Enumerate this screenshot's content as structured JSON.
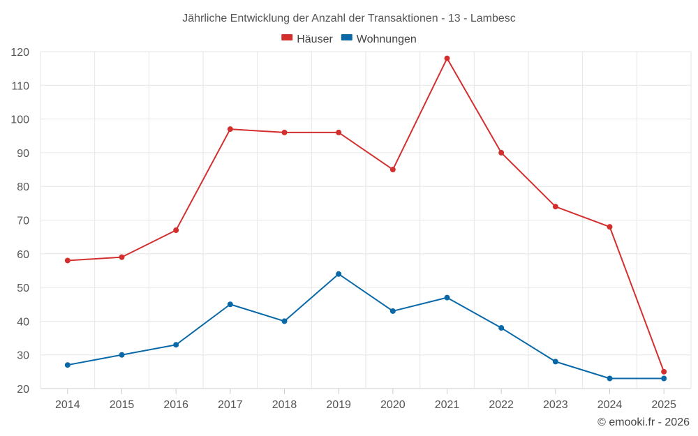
{
  "chart_data": {
    "type": "line",
    "title": "Jährliche Entwicklung der Anzahl der Transaktionen - 13 - Lambesc",
    "categories": [
      "2014",
      "2015",
      "2016",
      "2017",
      "2018",
      "2019",
      "2020",
      "2021",
      "2022",
      "2023",
      "2024",
      "2025"
    ],
    "series": [
      {
        "name": "Häuser",
        "color": "#d32f2f",
        "values": [
          58,
          59,
          67,
          97,
          96,
          96,
          85,
          118,
          90,
          74,
          68,
          25
        ]
      },
      {
        "name": "Wohnungen",
        "color": "#0868a8",
        "values": [
          27,
          30,
          33,
          45,
          40,
          54,
          43,
          47,
          38,
          28,
          23,
          23
        ]
      }
    ],
    "ylim": [
      20,
      120
    ],
    "yticks": [
      20,
      30,
      40,
      50,
      60,
      70,
      80,
      90,
      100,
      110,
      120
    ],
    "xlabel": "",
    "ylabel": "",
    "grid": true,
    "legend_position": "top-center"
  },
  "credit": "© emooki.fr - 2026"
}
